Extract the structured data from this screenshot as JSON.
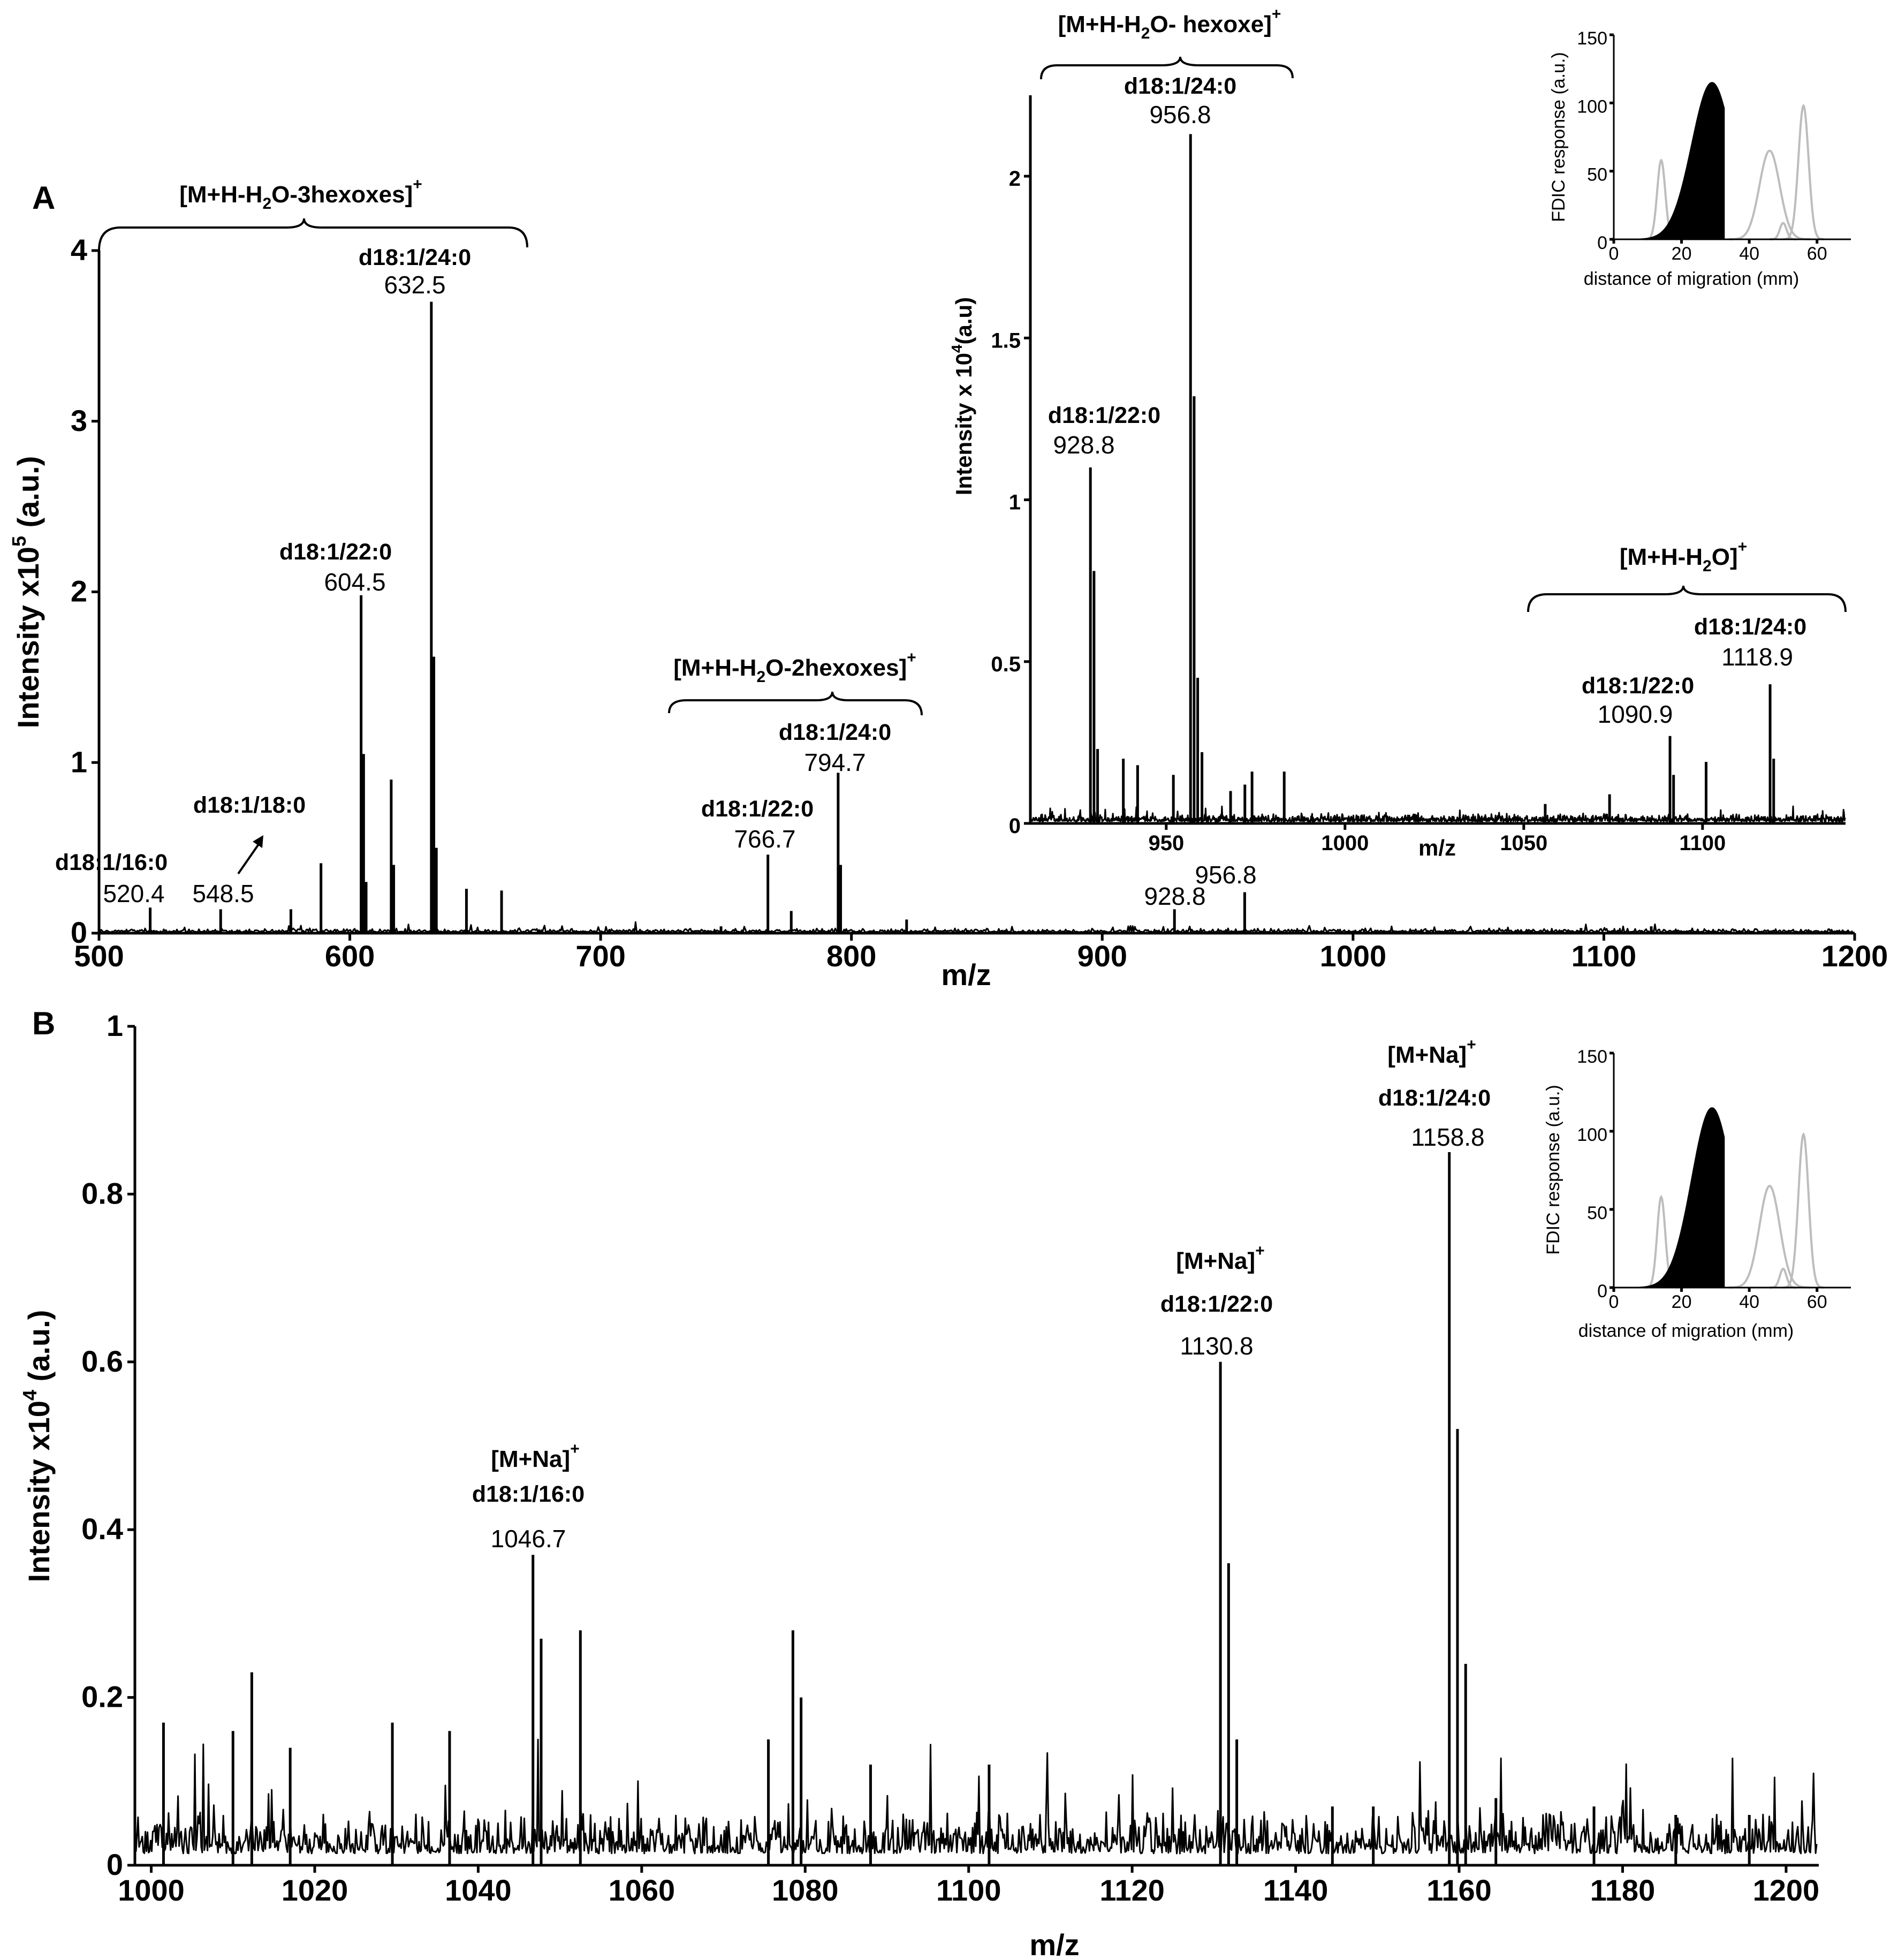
{
  "chart_data": [
    {
      "id": "A",
      "type": "line",
      "panel_label": "A",
      "xlabel": "m/z",
      "ylabel_prefix": "Intensity x10",
      "ylabel_exp": "5",
      "ylabel_suffix": " (a.u.)",
      "xlim": [
        500,
        1200
      ],
      "ylim": [
        0,
        4
      ],
      "xticks": [
        500,
        600,
        700,
        800,
        900,
        1000,
        1100,
        1200
      ],
      "yticks": [
        0,
        1,
        2,
        3,
        4
      ],
      "peaks": [
        {
          "mz": 520.4,
          "intensity": 0.15
        },
        {
          "mz": 548.5,
          "intensity": 0.14
        },
        {
          "mz": 576.5,
          "intensity": 0.14
        },
        {
          "mz": 588.5,
          "intensity": 0.41
        },
        {
          "mz": 604.5,
          "intensity": 1.98
        },
        {
          "mz": 605.5,
          "intensity": 1.05
        },
        {
          "mz": 606.5,
          "intensity": 0.3
        },
        {
          "mz": 616.5,
          "intensity": 0.9
        },
        {
          "mz": 617.5,
          "intensity": 0.4
        },
        {
          "mz": 632.5,
          "intensity": 3.7
        },
        {
          "mz": 633.5,
          "intensity": 1.62
        },
        {
          "mz": 634.5,
          "intensity": 0.5
        },
        {
          "mz": 646.5,
          "intensity": 0.26
        },
        {
          "mz": 660.5,
          "intensity": 0.25
        },
        {
          "mz": 748,
          "intensity": 0.04
        },
        {
          "mz": 766.7,
          "intensity": 0.46
        },
        {
          "mz": 776,
          "intensity": 0.13
        },
        {
          "mz": 794.7,
          "intensity": 0.94
        },
        {
          "mz": 795.7,
          "intensity": 0.4
        },
        {
          "mz": 822,
          "intensity": 0.08
        },
        {
          "mz": 928.8,
          "intensity": 0.14
        },
        {
          "mz": 956.8,
          "intensity": 0.24
        },
        {
          "mz": 1090.9,
          "intensity": 0.03
        },
        {
          "mz": 1118.9,
          "intensity": 0.04
        }
      ],
      "noise_level": 0.03,
      "labels": [
        {
          "lipid": "d18:1/16:0",
          "mz": "520.4"
        },
        {
          "lipid": "d18:1/18:0",
          "mz": "548.5"
        },
        {
          "lipid": "d18:1/22:0",
          "mz": "604.5"
        },
        {
          "lipid": "d18:1/24:0",
          "mz": "632.5"
        },
        {
          "lipid": "d18:1/22:0",
          "mz": "766.7"
        },
        {
          "lipid": "d18:1/24:0",
          "mz": "794.7"
        },
        {
          "lipid": "",
          "mz": "928.8"
        },
        {
          "lipid": "",
          "mz": "956.8"
        }
      ],
      "ion_groups": [
        {
          "pre": "M+H-H",
          "sub": "2",
          "post": "O-3hexoxes",
          "sup": "+"
        },
        {
          "pre": "M+H-H",
          "sub": "2",
          "post": "O-2hexoxes",
          "sup": "+"
        }
      ]
    },
    {
      "id": "A-inset",
      "type": "line",
      "xlabel": "m/z",
      "ylabel_prefix": "Intensity x 10",
      "ylabel_exp": "4",
      "ylabel_suffix": "(a.u)",
      "xlim": [
        912,
        1140
      ],
      "ylim": [
        0,
        2.25
      ],
      "xticks": [
        950,
        1000,
        1050,
        1100
      ],
      "yticks": [
        0,
        0.5,
        1,
        1.5,
        2
      ],
      "peaks": [
        {
          "mz": 928.8,
          "intensity": 1.1
        },
        {
          "mz": 929.8,
          "intensity": 0.78
        },
        {
          "mz": 930.8,
          "intensity": 0.23
        },
        {
          "mz": 938,
          "intensity": 0.2
        },
        {
          "mz": 942,
          "intensity": 0.18
        },
        {
          "mz": 952,
          "intensity": 0.15
        },
        {
          "mz": 956.8,
          "intensity": 2.13
        },
        {
          "mz": 957.8,
          "intensity": 1.32
        },
        {
          "mz": 958.8,
          "intensity": 0.45
        },
        {
          "mz": 960,
          "intensity": 0.22
        },
        {
          "mz": 968,
          "intensity": 0.1
        },
        {
          "mz": 972,
          "intensity": 0.12
        },
        {
          "mz": 974,
          "intensity": 0.16
        },
        {
          "mz": 983,
          "intensity": 0.16
        },
        {
          "mz": 1056,
          "intensity": 0.06
        },
        {
          "mz": 1074,
          "intensity": 0.09
        },
        {
          "mz": 1090.9,
          "intensity": 0.27
        },
        {
          "mz": 1091.9,
          "intensity": 0.15
        },
        {
          "mz": 1101,
          "intensity": 0.19
        },
        {
          "mz": 1118.9,
          "intensity": 0.43
        },
        {
          "mz": 1119.9,
          "intensity": 0.2
        }
      ],
      "noise_level": 0.03,
      "labels": [
        {
          "lipid": "d18:1/22:0",
          "mz": "928.8"
        },
        {
          "lipid": "d18:1/24:0",
          "mz": "956.8"
        },
        {
          "lipid": "d18:1/22:0",
          "mz": "1090.9"
        },
        {
          "lipid": "d18:1/24:0",
          "mz": "1118.9"
        }
      ],
      "ion_groups": [
        {
          "pre": "M+H-H",
          "sub": "2",
          "post": "O- hexoxe",
          "sup": "+"
        },
        {
          "pre": "M+H-H",
          "sub": "2",
          "post": "O",
          "sup": "+"
        }
      ]
    },
    {
      "id": "A-tlc",
      "type": "area",
      "xlabel": "distance of migration (mm)",
      "ylabel": "FDIC response (a.u.)",
      "xlim": [
        0,
        70
      ],
      "ylim": [
        0,
        150
      ],
      "xticks": [
        0,
        20,
        40,
        60
      ],
      "yticks": [
        0,
        50,
        100,
        150
      ],
      "peaks": [
        {
          "center": 14,
          "height": 58,
          "width": 1.2,
          "highlight": false
        },
        {
          "center": 29,
          "height": 115,
          "width": 6,
          "highlight": true
        },
        {
          "center": 46,
          "height": 65,
          "width": 3,
          "highlight": false
        },
        {
          "center": 50,
          "height": 12,
          "width": 1,
          "highlight": false
        },
        {
          "center": 56,
          "height": 98,
          "width": 1.5,
          "highlight": false
        }
      ]
    },
    {
      "id": "B",
      "type": "line",
      "panel_label": "B",
      "xlabel": "m/z",
      "ylabel_prefix": "Intensity x10",
      "ylabel_exp": "4",
      "ylabel_suffix": " (a.u.)",
      "xlim": [
        998,
        1204
      ],
      "ylim": [
        0,
        1
      ],
      "xticks": [
        1000,
        1020,
        1040,
        1060,
        1080,
        1100,
        1120,
        1140,
        1160,
        1180,
        1200
      ],
      "yticks": [
        0,
        0.2,
        0.4,
        0.6,
        0.8,
        1
      ],
      "peaks": [
        {
          "mz": 1001.5,
          "intensity": 0.17
        },
        {
          "mz": 1010,
          "intensity": 0.16
        },
        {
          "mz": 1012.3,
          "intensity": 0.23
        },
        {
          "mz": 1017,
          "intensity": 0.14
        },
        {
          "mz": 1029.5,
          "intensity": 0.17
        },
        {
          "mz": 1036.5,
          "intensity": 0.16
        },
        {
          "mz": 1046.7,
          "intensity": 0.37
        },
        {
          "mz": 1047.7,
          "intensity": 0.27
        },
        {
          "mz": 1052.5,
          "intensity": 0.28
        },
        {
          "mz": 1075.5,
          "intensity": 0.15
        },
        {
          "mz": 1078.5,
          "intensity": 0.28
        },
        {
          "mz": 1079.5,
          "intensity": 0.2
        },
        {
          "mz": 1088,
          "intensity": 0.12
        },
        {
          "mz": 1102.5,
          "intensity": 0.12
        },
        {
          "mz": 1130.8,
          "intensity": 0.6
        },
        {
          "mz": 1131.8,
          "intensity": 0.36
        },
        {
          "mz": 1132.8,
          "intensity": 0.15
        },
        {
          "mz": 1144.5,
          "intensity": 0.07
        },
        {
          "mz": 1149.5,
          "intensity": 0.07
        },
        {
          "mz": 1158.8,
          "intensity": 0.85
        },
        {
          "mz": 1159.8,
          "intensity": 0.52
        },
        {
          "mz": 1160.8,
          "intensity": 0.24
        },
        {
          "mz": 1164.5,
          "intensity": 0.08
        },
        {
          "mz": 1176.5,
          "intensity": 0.07
        },
        {
          "mz": 1186.5,
          "intensity": 0.06
        },
        {
          "mz": 1195.5,
          "intensity": 0.06
        }
      ],
      "noise_level": 0.07,
      "labels": [
        {
          "lipid": "d18:1/16:0",
          "mz": "1046.7"
        },
        {
          "lipid": "d18:1/22:0",
          "mz": "1130.8"
        },
        {
          "lipid": "d18:1/24:0",
          "mz": "1158.8"
        }
      ],
      "ion_groups": [
        {
          "pre": "M+Na",
          "sub": "",
          "post": "",
          "sup": "+"
        },
        {
          "pre": "M+Na",
          "sub": "",
          "post": "",
          "sup": "+"
        },
        {
          "pre": "M+Na",
          "sub": "",
          "post": "",
          "sup": "+"
        }
      ]
    },
    {
      "id": "B-tlc",
      "type": "area",
      "xlabel": "distance of migration (mm)",
      "ylabel": "FDIC response (a.u.)",
      "xlim": [
        0,
        70
      ],
      "ylim": [
        0,
        150
      ],
      "xticks": [
        0,
        20,
        40,
        60
      ],
      "yticks": [
        0,
        50,
        100,
        150
      ],
      "peaks": [
        {
          "center": 14,
          "height": 58,
          "width": 1.2,
          "highlight": false
        },
        {
          "center": 29,
          "height": 115,
          "width": 6,
          "highlight": true
        },
        {
          "center": 46,
          "height": 65,
          "width": 3,
          "highlight": false
        },
        {
          "center": 50,
          "height": 12,
          "width": 1,
          "highlight": false
        },
        {
          "center": 56,
          "height": 98,
          "width": 1.5,
          "highlight": false
        }
      ]
    }
  ]
}
